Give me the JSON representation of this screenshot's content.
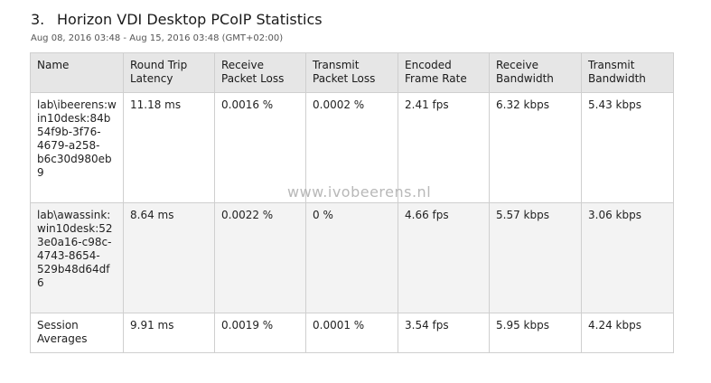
{
  "report": {
    "number": "3.",
    "title": "Horizon VDI Desktop PCoIP Statistics",
    "date_range": "Aug 08, 2016 03:48 - Aug 15, 2016 03:48 (GMT+02:00)"
  },
  "table": {
    "headers": [
      "Name",
      "Round Trip Latency",
      "Receive Packet Loss",
      "Transmit Packet Loss",
      "Encoded Frame Rate",
      "Receive Bandwidth",
      "Transmit Bandwidth"
    ],
    "rows": [
      [
        "lab\\ibeerens:win10desk:84b54f9b-3f76-4679-a258-b6c30d980eb9",
        "11.18 ms",
        "0.0016 %",
        "0.0002 %",
        "2.41 fps",
        "6.32 kbps",
        "5.43 kbps"
      ],
      [
        "lab\\awassink:win10desk:523e0a16-c98c-4743-8654-529b48d64df6",
        "8.64 ms",
        "0.0022 %",
        "0 %",
        "4.66 fps",
        "5.57 kbps",
        "3.06 kbps"
      ],
      [
        "Session Averages",
        "9.91 ms",
        "0.0019 %",
        "0.0001 %",
        "3.54 fps",
        "5.95 kbps",
        "4.24 kbps"
      ]
    ]
  },
  "watermark": "www.ivobeerens.nl"
}
